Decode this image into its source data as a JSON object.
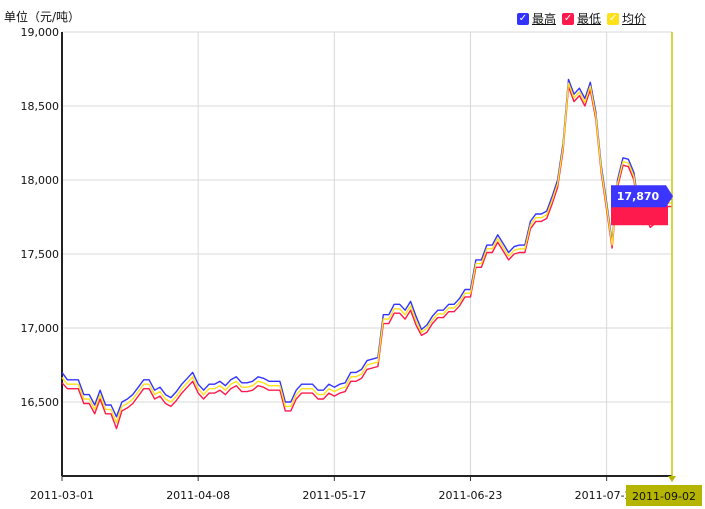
{
  "unit_label": "单位（元/吨）",
  "legend": [
    {
      "label": "最高",
      "color": "#3333ff",
      "checked": true
    },
    {
      "label": "最低",
      "color": "#ff1a4d",
      "checked": true
    },
    {
      "label": "均价",
      "color": "#ffe11a",
      "checked": true
    }
  ],
  "tooltip": {
    "value": "17,870",
    "color": "#3b35ff"
  },
  "cursor_date": "2011-09-02",
  "chart_data": {
    "type": "line",
    "ylim": [
      16000,
      19000
    ],
    "yticks": [
      16500,
      17000,
      17500,
      18000,
      18500,
      19000
    ],
    "ytick_labels": [
      "16,500",
      "17,000",
      "17,500",
      "18,000",
      "18,500",
      "19,000"
    ],
    "xtick_labels": [
      "2011-03-01",
      "2011-04-08",
      "2011-05-17",
      "2011-06-23",
      "2011-07-29"
    ],
    "xtick_index": [
      0,
      25,
      50,
      75,
      100
    ],
    "grid": true,
    "legend_position": "top-right",
    "series": [
      {
        "name": "最高",
        "color": "#3333ff",
        "values": [
          16700,
          16650,
          16650,
          16650,
          16550,
          16550,
          16480,
          16580,
          16480,
          16480,
          16400,
          16500,
          16520,
          16550,
          16600,
          16650,
          16650,
          16580,
          16600,
          16550,
          16530,
          16570,
          16620,
          16660,
          16700,
          16620,
          16580,
          16620,
          16620,
          16640,
          16610,
          16650,
          16670,
          16630,
          16630,
          16640,
          16670,
          16660,
          16640,
          16640,
          16640,
          16500,
          16500,
          16580,
          16620,
          16620,
          16620,
          16580,
          16580,
          16620,
          16600,
          16620,
          16630,
          16700,
          16700,
          16720,
          16780,
          16790,
          16800,
          17090,
          17090,
          17160,
          17160,
          17120,
          17180,
          17080,
          16990,
          17020,
          17080,
          17120,
          17120,
          17160,
          17160,
          17200,
          17260,
          17260,
          17460,
          17460,
          17560,
          17560,
          17630,
          17570,
          17510,
          17550,
          17560,
          17560,
          17720,
          17770,
          17770,
          17790,
          17890,
          18000,
          18250,
          18680,
          18580,
          18620,
          18550,
          18660,
          18460,
          18100,
          17850,
          17580,
          18000,
          18150,
          18140,
          18050,
          17800,
          17820,
          17820,
          17760,
          17860,
          17870,
          17870
        ]
      },
      {
        "name": "最低",
        "color": "#ff1a4d",
        "values": [
          16630,
          16590,
          16590,
          16590,
          16490,
          16490,
          16420,
          16520,
          16420,
          16420,
          16320,
          16440,
          16460,
          16490,
          16540,
          16590,
          16590,
          16520,
          16540,
          16490,
          16470,
          16510,
          16560,
          16600,
          16640,
          16560,
          16520,
          16560,
          16560,
          16580,
          16550,
          16590,
          16610,
          16570,
          16570,
          16580,
          16610,
          16600,
          16580,
          16580,
          16580,
          16440,
          16440,
          16520,
          16560,
          16560,
          16560,
          16520,
          16520,
          16560,
          16540,
          16560,
          16570,
          16640,
          16640,
          16660,
          16720,
          16730,
          16740,
          17030,
          17030,
          17100,
          17100,
          17060,
          17120,
          17020,
          16950,
          16970,
          17030,
          17070,
          17070,
          17110,
          17110,
          17150,
          17210,
          17210,
          17410,
          17410,
          17510,
          17510,
          17580,
          17520,
          17460,
          17500,
          17510,
          17510,
          17670,
          17720,
          17720,
          17740,
          17840,
          17950,
          18200,
          18630,
          18530,
          18570,
          18500,
          18610,
          18410,
          18050,
          17800,
          17540,
          17950,
          18100,
          18090,
          18000,
          17750,
          17770,
          17680,
          17710,
          17810,
          17820,
          17820
        ]
      },
      {
        "name": "均价",
        "color": "#ffe11a",
        "values": [
          16665,
          16620,
          16620,
          16620,
          16520,
          16520,
          16450,
          16550,
          16450,
          16450,
          16360,
          16470,
          16490,
          16520,
          16570,
          16620,
          16620,
          16550,
          16570,
          16520,
          16500,
          16540,
          16590,
          16630,
          16670,
          16590,
          16550,
          16590,
          16590,
          16610,
          16580,
          16620,
          16640,
          16600,
          16600,
          16610,
          16640,
          16630,
          16610,
          16610,
          16610,
          16470,
          16470,
          16550,
          16590,
          16590,
          16590,
          16550,
          16550,
          16590,
          16570,
          16590,
          16600,
          16670,
          16670,
          16690,
          16750,
          16760,
          16770,
          17060,
          17060,
          17130,
          17130,
          17090,
          17150,
          17050,
          16970,
          17000,
          17055,
          17095,
          17095,
          17135,
          17135,
          17175,
          17235,
          17235,
          17435,
          17435,
          17535,
          17535,
          17605,
          17545,
          17485,
          17525,
          17535,
          17535,
          17695,
          17745,
          17745,
          17765,
          17865,
          17975,
          18225,
          18655,
          18555,
          18595,
          18525,
          18635,
          18435,
          18075,
          17825,
          17560,
          17975,
          18125,
          18115,
          18025,
          17775,
          17795,
          17750,
          17735,
          17835,
          17845,
          17845
        ]
      }
    ]
  }
}
